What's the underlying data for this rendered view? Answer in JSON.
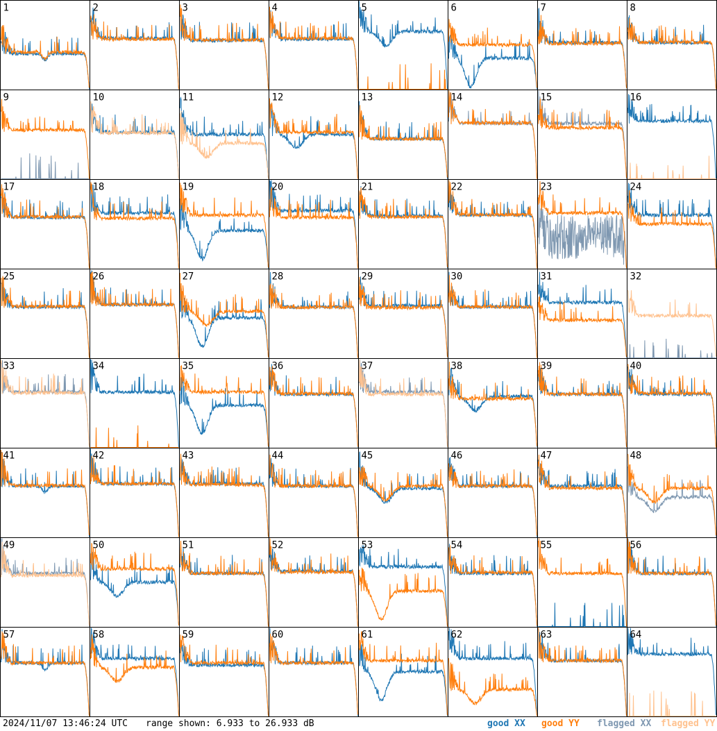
{
  "chart_data": {
    "type": "line",
    "panel_count": 64,
    "panels": [
      {
        "label": "1",
        "xx": "good",
        "yy": "good",
        "xx_shape": "ripple",
        "yy_shape": "ripple",
        "xx_level": 15.0,
        "yy_level": 15.3
      },
      {
        "label": "2",
        "xx": "good",
        "yy": "good",
        "xx_shape": "flat",
        "yy_shape": "flat",
        "xx_level": 18.5,
        "yy_level": 18.3
      },
      {
        "label": "3",
        "xx": "good",
        "yy": "good",
        "xx_shape": "flat",
        "yy_shape": "flat",
        "xx_level": 18.0,
        "yy_level": 18.1
      },
      {
        "label": "4",
        "xx": "good",
        "yy": "good",
        "xx_shape": "flat",
        "yy_shape": "flat",
        "xx_level": 18.3,
        "yy_level": 18.5
      },
      {
        "label": "5",
        "xx": "good",
        "yy": "good",
        "xx_shape": "dip",
        "yy_shape": "dead",
        "xx_level": 20.0,
        "yy_level": 6.933
      },
      {
        "label": "6",
        "xx": "good",
        "yy": "good",
        "xx_shape": "deepdip",
        "yy_shape": "flat",
        "xx_level": 14.0,
        "yy_level": 17.0
      },
      {
        "label": "7",
        "xx": "good",
        "yy": "good",
        "xx_shape": "flat",
        "yy_shape": "flat",
        "xx_level": 17.5,
        "yy_level": 17.3
      },
      {
        "label": "8",
        "xx": "good",
        "yy": "good",
        "xx_shape": "flat",
        "yy_shape": "flat",
        "xx_level": 17.5,
        "yy_level": 17.6
      },
      {
        "label": "9",
        "xx": "flagged",
        "yy": "good",
        "xx_shape": "dead",
        "yy_shape": "flat",
        "xx_level": 6.933,
        "yy_level": 18.0
      },
      {
        "label": "10",
        "xx": "good",
        "yy": "flagged",
        "xx_shape": "flat",
        "yy_shape": "flat",
        "xx_level": 17.5,
        "yy_level": 17.3
      },
      {
        "label": "11",
        "xx": "good",
        "yy": "flagged",
        "xx_shape": "flat",
        "yy_shape": "dip",
        "xx_level": 17.0,
        "yy_level": 15.0
      },
      {
        "label": "12",
        "xx": "good",
        "yy": "good",
        "xx_shape": "dip",
        "yy_shape": "flat",
        "xx_level": 17.0,
        "yy_level": 17.5
      },
      {
        "label": "13",
        "xx": "good",
        "yy": "good",
        "xx_shape": "flat",
        "yy_shape": "flat",
        "xx_level": 16.0,
        "yy_level": 16.0
      },
      {
        "label": "14",
        "xx": "flagged",
        "yy": "good",
        "xx_shape": "flat",
        "yy_shape": "flat",
        "xx_level": 19.5,
        "yy_level": 19.6
      },
      {
        "label": "15",
        "xx": "flagged",
        "yy": "good",
        "xx_shape": "flat",
        "yy_shape": "flat",
        "xx_level": 19.5,
        "yy_level": 18.5
      },
      {
        "label": "16",
        "xx": "good",
        "yy": "flagged",
        "xx_shape": "flat",
        "yy_shape": "dead",
        "xx_level": 20.0,
        "yy_level": 6.933
      },
      {
        "label": "17",
        "xx": "good",
        "yy": "good",
        "xx_shape": "flat",
        "yy_shape": "flat",
        "xx_level": 18.5,
        "yy_level": 18.6
      },
      {
        "label": "18",
        "xx": "good",
        "yy": "good",
        "xx_shape": "flat",
        "yy_shape": "flat",
        "xx_level": 19.5,
        "yy_level": 18.3
      },
      {
        "label": "19",
        "xx": "good",
        "yy": "good",
        "xx_shape": "deepdip",
        "yy_shape": "flat",
        "xx_level": 15.5,
        "yy_level": 19.0
      },
      {
        "label": "20",
        "xx": "good",
        "yy": "good",
        "xx_shape": "flat",
        "yy_shape": "flat",
        "xx_level": 20.0,
        "yy_level": 18.5
      },
      {
        "label": "21",
        "xx": "good",
        "yy": "good",
        "xx_shape": "flat",
        "yy_shape": "flat",
        "xx_level": 18.8,
        "yy_level": 18.6
      },
      {
        "label": "22",
        "xx": "good",
        "yy": "good",
        "xx_shape": "flat",
        "yy_shape": "flat",
        "xx_level": 19.0,
        "yy_level": 19.1
      },
      {
        "label": "23",
        "xx": "flagged",
        "yy": "good",
        "xx_shape": "noisy",
        "yy_shape": "flat",
        "xx_level": 14.0,
        "yy_level": 19.5
      },
      {
        "label": "24",
        "xx": "good",
        "yy": "good",
        "xx_shape": "flat",
        "yy_shape": "flat",
        "xx_level": 19.0,
        "yy_level": 17.0
      },
      {
        "label": "25",
        "xx": "good",
        "yy": "good",
        "xx_shape": "flat",
        "yy_shape": "flat",
        "xx_level": 18.5,
        "yy_level": 18.6
      },
      {
        "label": "26",
        "xx": "good",
        "yy": "good",
        "xx_shape": "flat",
        "yy_shape": "flat",
        "xx_level": 19.0,
        "yy_level": 19.0
      },
      {
        "label": "27",
        "xx": "good",
        "yy": "good",
        "xx_shape": "deepdip",
        "yy_shape": "dip",
        "xx_level": 16.0,
        "yy_level": 17.5
      },
      {
        "label": "28",
        "xx": "good",
        "yy": "good",
        "xx_shape": "flat",
        "yy_shape": "flat",
        "xx_level": 18.5,
        "yy_level": 18.4
      },
      {
        "label": "29",
        "xx": "good",
        "yy": "good",
        "xx_shape": "flat",
        "yy_shape": "flat",
        "xx_level": 18.7,
        "yy_level": 18.3
      },
      {
        "label": "30",
        "xx": "good",
        "yy": "good",
        "xx_shape": "flat",
        "yy_shape": "flat",
        "xx_level": 18.5,
        "yy_level": 18.5
      },
      {
        "label": "31",
        "xx": "good",
        "yy": "good",
        "xx_shape": "flat",
        "yy_shape": "flat",
        "xx_level": 19.5,
        "yy_level": 15.5
      },
      {
        "label": "32",
        "xx": "flagged",
        "yy": "flagged",
        "xx_shape": "dead",
        "yy_shape": "flat",
        "xx_level": 6.933,
        "yy_level": 16.5
      },
      {
        "label": "33",
        "xx": "flagged",
        "yy": "flagged",
        "xx_shape": "flat",
        "yy_shape": "flat",
        "xx_level": 19.5,
        "yy_level": 19.3
      },
      {
        "label": "34",
        "xx": "good",
        "yy": "good",
        "xx_shape": "flat",
        "yy_shape": "dead",
        "xx_level": 19.5,
        "yy_level": 6.933
      },
      {
        "label": "35",
        "xx": "good",
        "yy": "good",
        "xx_shape": "deepdip",
        "yy_shape": "flat",
        "xx_level": 16.5,
        "yy_level": 19.5
      },
      {
        "label": "36",
        "xx": "good",
        "yy": "good",
        "xx_shape": "flat",
        "yy_shape": "flat",
        "xx_level": 19.0,
        "yy_level": 19.1
      },
      {
        "label": "37",
        "xx": "flagged",
        "yy": "flagged",
        "xx_shape": "flat",
        "yy_shape": "flat",
        "xx_level": 19.5,
        "yy_level": 19.0
      },
      {
        "label": "38",
        "xx": "good",
        "yy": "good",
        "xx_shape": "dip",
        "yy_shape": "flat",
        "xx_level": 18.5,
        "yy_level": 18.0
      },
      {
        "label": "39",
        "xx": "good",
        "yy": "good",
        "xx_shape": "flat",
        "yy_shape": "flat",
        "xx_level": 19.0,
        "yy_level": 19.0
      },
      {
        "label": "40",
        "xx": "good",
        "yy": "good",
        "xx_shape": "flat",
        "yy_shape": "flat",
        "xx_level": 19.0,
        "yy_level": 19.2
      },
      {
        "label": "41",
        "xx": "good",
        "yy": "good",
        "xx_shape": "ripple",
        "yy_shape": "flat",
        "xx_level": 18.5,
        "yy_level": 18.6
      },
      {
        "label": "42",
        "xx": "good",
        "yy": "good",
        "xx_shape": "flat",
        "yy_shape": "flat",
        "xx_level": 19.0,
        "yy_level": 19.0
      },
      {
        "label": "43",
        "xx": "good",
        "yy": "good",
        "xx_shape": "flat",
        "yy_shape": "flat",
        "xx_level": 19.0,
        "yy_level": 18.8
      },
      {
        "label": "44",
        "xx": "good",
        "yy": "good",
        "xx_shape": "flat",
        "yy_shape": "flat",
        "xx_level": 18.5,
        "yy_level": 18.5
      },
      {
        "label": "45",
        "xx": "good",
        "yy": "good",
        "xx_shape": "dip",
        "yy_shape": "dip",
        "xx_level": 18.0,
        "yy_level": 18.5
      },
      {
        "label": "46",
        "xx": "good",
        "yy": "good",
        "xx_shape": "flat",
        "yy_shape": "flat",
        "xx_level": 18.5,
        "yy_level": 18.5
      },
      {
        "label": "47",
        "xx": "good",
        "yy": "good",
        "xx_shape": "flat",
        "yy_shape": "flat",
        "xx_level": 18.5,
        "yy_level": 18.0
      },
      {
        "label": "48",
        "xx": "flagged",
        "yy": "good",
        "xx_shape": "dip",
        "yy_shape": "dip",
        "xx_level": 16.0,
        "yy_level": 18.0
      },
      {
        "label": "49",
        "xx": "flagged",
        "yy": "flagged",
        "xx_shape": "flat",
        "yy_shape": "flat",
        "xx_level": 19.0,
        "yy_level": 18.5
      },
      {
        "label": "50",
        "xx": "good",
        "yy": "good",
        "xx_shape": "dip",
        "yy_shape": "flat",
        "xx_level": 17.0,
        "yy_level": 20.0
      },
      {
        "label": "51",
        "xx": "good",
        "yy": "good",
        "xx_shape": "flat",
        "yy_shape": "flat",
        "xx_level": 19.0,
        "yy_level": 19.0
      },
      {
        "label": "52",
        "xx": "good",
        "yy": "good",
        "xx_shape": "flat",
        "yy_shape": "flat",
        "xx_level": 19.5,
        "yy_level": 19.3
      },
      {
        "label": "53",
        "xx": "good",
        "yy": "good",
        "xx_shape": "flat",
        "yy_shape": "deepdip",
        "xx_level": 20.5,
        "yy_level": 15.0
      },
      {
        "label": "54",
        "xx": "good",
        "yy": "good",
        "xx_shape": "flat",
        "yy_shape": "flat",
        "xx_level": 19.0,
        "yy_level": 19.2
      },
      {
        "label": "55",
        "xx": "good",
        "yy": "good",
        "xx_shape": "dead",
        "yy_shape": "flat",
        "xx_level": 6.933,
        "yy_level": 19.0
      },
      {
        "label": "56",
        "xx": "good",
        "yy": "good",
        "xx_shape": "flat",
        "yy_shape": "flat",
        "xx_level": 19.0,
        "yy_level": 19.0
      },
      {
        "label": "57",
        "xx": "good",
        "yy": "good",
        "xx_shape": "ripple",
        "yy_shape": "flat",
        "xx_level": 19.0,
        "yy_level": 19.0
      },
      {
        "label": "58",
        "xx": "good",
        "yy": "good",
        "xx_shape": "flat",
        "yy_shape": "dip",
        "xx_level": 20.0,
        "yy_level": 18.0
      },
      {
        "label": "59",
        "xx": "good",
        "yy": "good",
        "xx_shape": "flat",
        "yy_shape": "flat",
        "xx_level": 18.5,
        "yy_level": 19.0
      },
      {
        "label": "60",
        "xx": "good",
        "yy": "good",
        "xx_shape": "flat",
        "yy_shape": "flat",
        "xx_level": 19.0,
        "yy_level": 19.0
      },
      {
        "label": "61",
        "xx": "good",
        "yy": "good",
        "xx_shape": "deepdip",
        "yy_shape": "flat",
        "xx_level": 17.0,
        "yy_level": 19.5
      },
      {
        "label": "62",
        "xx": "good",
        "yy": "good",
        "xx_shape": "flat",
        "yy_shape": "dip",
        "xx_level": 20.0,
        "yy_level": 13.0
      },
      {
        "label": "63",
        "xx": "good",
        "yy": "good",
        "xx_shape": "flat",
        "yy_shape": "flat",
        "xx_level": 19.5,
        "yy_level": 19.5
      },
      {
        "label": "64",
        "xx": "good",
        "yy": "flagged",
        "xx_shape": "flat",
        "yy_shape": "dead",
        "xx_level": 21.0,
        "yy_level": 6.933
      }
    ],
    "ylim": [
      6.933,
      26.933
    ],
    "grid": false,
    "legend_position": "bottom-right",
    "colors": {
      "good_xx": "#1f77b4",
      "good_yy": "#ff7f0e",
      "flagged_xx": "#7f98b1",
      "flagged_yy": "#ffc28f"
    }
  },
  "footer": {
    "timestamp": "2024/11/07 13:46:24 UTC",
    "range_text": "range shown: 6.933 to 26.933 dB",
    "legend": {
      "good_xx": "good XX",
      "good_yy": "good YY",
      "flagged_xx": "flagged XX",
      "flagged_yy": "flagged YY"
    }
  }
}
